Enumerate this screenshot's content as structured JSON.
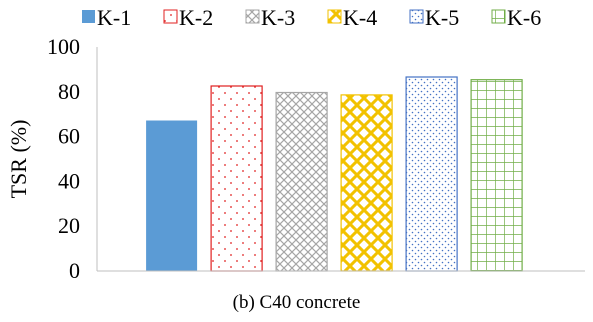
{
  "caption": "(b) C40 concrete",
  "chart_data": {
    "type": "bar",
    "ylabel": "TSR (%)",
    "xlabel": "",
    "ylim": [
      0,
      100
    ],
    "yticks": [
      0,
      20,
      40,
      60,
      80,
      100
    ],
    "ytick_labels": [
      "0",
      "20",
      "40",
      "60",
      "80",
      "100"
    ],
    "grid": false,
    "legend_position": "top",
    "series": [
      {
        "name": "K-1",
        "value": 67.2,
        "color": "#5b9bd5",
        "pattern": "solid"
      },
      {
        "name": "K-2",
        "value": 82.6,
        "color": "#e02020",
        "pattern": "dots-sparse"
      },
      {
        "name": "K-3",
        "value": 79.7,
        "color": "#a6a6a6",
        "pattern": "grid-diagonal"
      },
      {
        "name": "K-4",
        "value": 78.6,
        "color": "#f2c200",
        "pattern": "diamond"
      },
      {
        "name": "K-5",
        "value": 86.6,
        "color": "#4472c4",
        "pattern": "dots-dense"
      },
      {
        "name": "K-6",
        "value": 85.4,
        "color": "#70ad47",
        "pattern": "grid-square"
      }
    ]
  }
}
